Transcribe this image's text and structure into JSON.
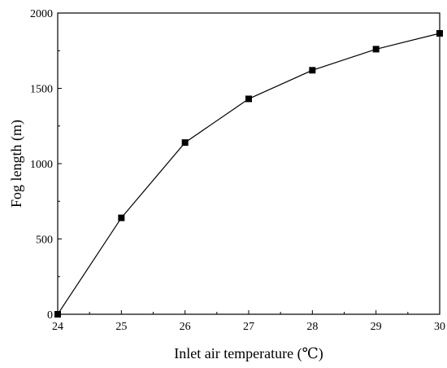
{
  "chart_data": {
    "type": "line",
    "xlabel": "Inlet air temperature (℃)",
    "ylabel": "Fog length (m)",
    "xlim": [
      24,
      30
    ],
    "ylim": [
      0,
      2000
    ],
    "x_ticks": [
      "24",
      "25",
      "26",
      "27",
      "28",
      "29",
      "30"
    ],
    "y_ticks": [
      "0",
      "500",
      "1000",
      "1500",
      "2000"
    ],
    "grid": false,
    "legend": "none",
    "marker": "square",
    "color": "#000000",
    "series": [
      {
        "x": [
          24,
          25,
          26,
          27,
          28,
          29,
          30
        ],
        "values": [
          0,
          640,
          1140,
          1430,
          1620,
          1760,
          1865
        ]
      }
    ]
  }
}
